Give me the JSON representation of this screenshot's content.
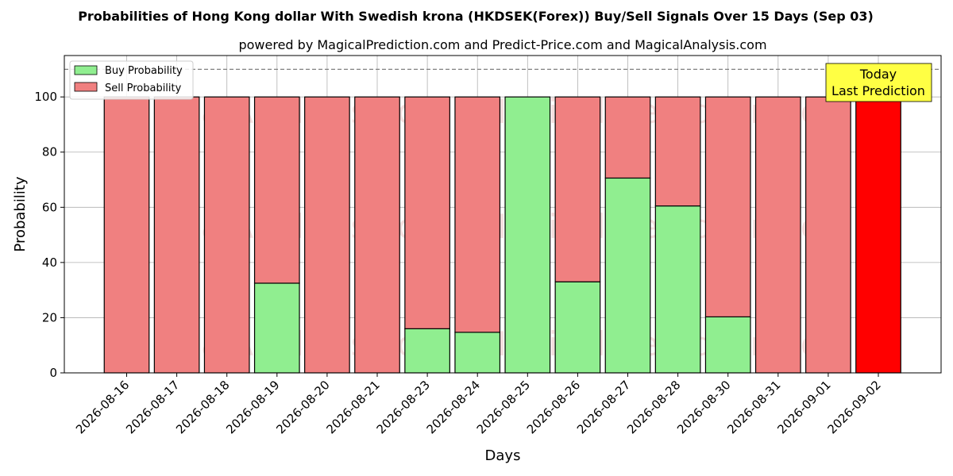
{
  "chart_data": {
    "type": "bar",
    "stacked": true,
    "title": "Probabilities of Hong Kong dollar With Swedish krona (HKDSEK(Forex)) Buy/Sell Signals Over 15 Days (Sep 03)",
    "subtitle": "powered by MagicalPrediction.com and Predict-Price.com and MagicalAnalysis.com",
    "xlabel": "Days",
    "ylabel": "Probability",
    "ylim": [
      0,
      115
    ],
    "yticks": [
      0,
      20,
      40,
      60,
      80,
      100
    ],
    "reference_line": 110,
    "grid": true,
    "legend_position": "top-left",
    "categories": [
      "2026-08-16",
      "2026-08-17",
      "2026-08-18",
      "2026-08-19",
      "2026-08-20",
      "2026-08-21",
      "2026-08-23",
      "2026-08-24",
      "2026-08-25",
      "2026-08-26",
      "2026-08-27",
      "2026-08-28",
      "2026-08-30",
      "2026-08-31",
      "2026-09-01",
      "2026-09-02"
    ],
    "series": [
      {
        "name": "Buy Probability",
        "color": "#90ee90",
        "values": [
          0,
          0,
          0,
          32.5,
          0,
          0,
          16,
          14.7,
          100,
          33,
          70.6,
          60.5,
          20.3,
          0,
          0,
          0
        ]
      },
      {
        "name": "Sell Probability",
        "color": "#f08080",
        "values": [
          100,
          100,
          100,
          67.5,
          100,
          100,
          84,
          85.3,
          0,
          67,
          29.4,
          39.5,
          79.7,
          100,
          100,
          100
        ]
      }
    ],
    "highlight": {
      "index": 15,
      "color": "#ff0000"
    },
    "annotation": {
      "line1": "Today",
      "line2": "Last Prediction",
      "color": "#ffff44"
    },
    "watermarks": [
      "MagicalAnalysis.com",
      "MagicalPrediction.com"
    ]
  }
}
